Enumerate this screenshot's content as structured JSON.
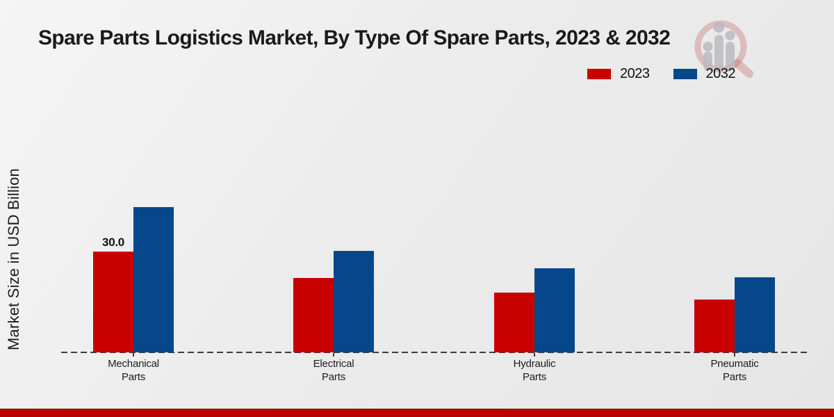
{
  "title": "Spare Parts Logistics Market, By Type Of Spare Parts, 2023 & 2032",
  "ylabel": "Market Size in USD Billion",
  "legend": {
    "items": [
      {
        "label": "2023",
        "color": "#c80100"
      },
      {
        "label": "2032",
        "color": "#05478a"
      }
    ]
  },
  "watermark": {
    "name": "magnifier-bar-chart-logo",
    "glass_color": "rgba(192,82,82,0.30)",
    "bars_color": "rgba(186,186,192,0.85)"
  },
  "footer": {
    "bar_color": "#bb0000"
  },
  "chart_data": {
    "type": "bar",
    "title": "Spare Parts Logistics Market, By Type Of Spare Parts, 2023 & 2032",
    "xlabel": "",
    "ylabel": "Market Size in USD Billion",
    "categories": [
      "Mechanical Parts",
      "Electrical Parts",
      "Hydraulic Parts",
      "Pneumatic Parts"
    ],
    "series": [
      {
        "name": "2023",
        "color": "#c80100",
        "values": [
          30.0,
          22.1,
          17.9,
          15.7
        ]
      },
      {
        "name": "2032",
        "color": "#05478a",
        "values": [
          43.2,
          30.2,
          25.0,
          22.4
        ]
      }
    ],
    "ylim": [
      0,
      45
    ],
    "grid": false,
    "axis_line_style": "dashed",
    "legend_position": "top-right",
    "bar_value_labels": [
      {
        "series_index": 0,
        "category_index": 0,
        "text": "30.0"
      }
    ]
  }
}
